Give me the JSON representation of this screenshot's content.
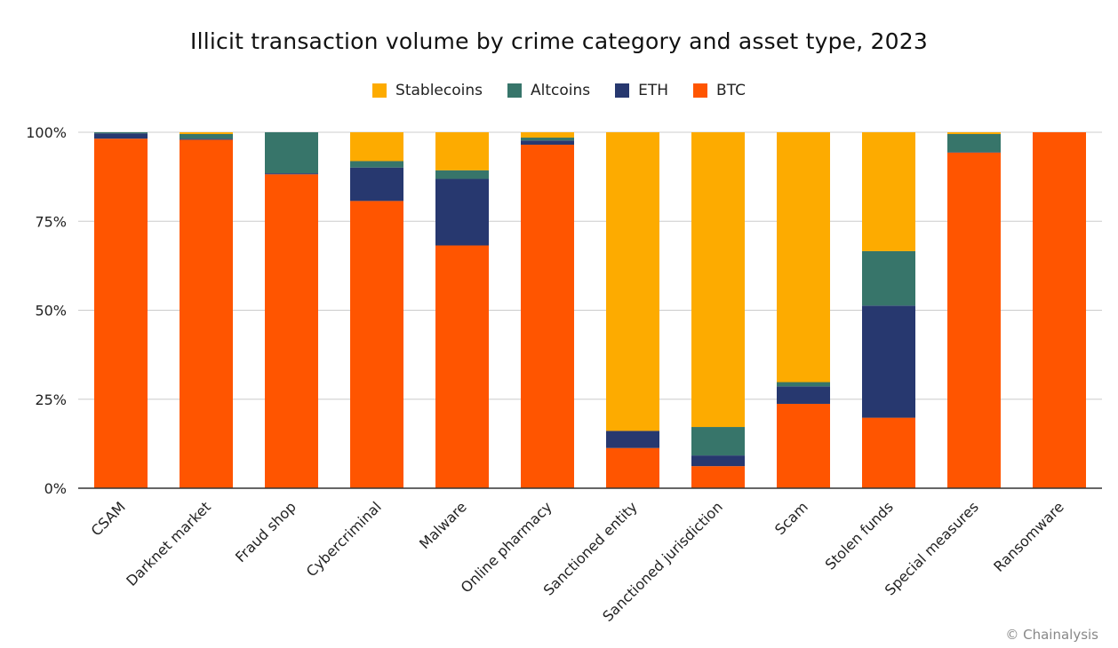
{
  "credit": "© Chainalysis",
  "colors": {
    "Stablecoins": "#fdab00",
    "Altcoins": "#37756a",
    "ETH": "#27386f",
    "BTC": "#ff5500",
    "grid": "#cccccc",
    "axis": "#333333"
  },
  "chart_data": {
    "type": "bar",
    "stacked": true,
    "title": "Illicit transaction volume by crime category and asset type, 2023",
    "legend_position": "top-center",
    "grid": true,
    "ylim": [
      0,
      100
    ],
    "yticks": [
      0,
      25,
      50,
      75,
      100
    ],
    "ytick_labels": [
      "0%",
      "25%",
      "50%",
      "75%",
      "100%"
    ],
    "categories": [
      "CSAM",
      "Darknet market",
      "Fraud shop",
      "Cybercriminal",
      "Malware",
      "Online pharmacy",
      "Sanctioned entity",
      "Sanctioned jurisdiction",
      "Scam",
      "Stolen funds",
      "Special measures",
      "Ransomware"
    ],
    "series": [
      {
        "name": "BTC",
        "values": [
          98.2,
          97.9,
          88.2,
          80.7,
          68.2,
          96.5,
          11.3,
          6.2,
          23.7,
          19.8,
          94.3,
          100
        ]
      },
      {
        "name": "ETH",
        "values": [
          1.5,
          0.3,
          0.3,
          9.4,
          18.7,
          1.2,
          4.8,
          3.0,
          4.9,
          31.5,
          0.1,
          0
        ]
      },
      {
        "name": "Altcoins",
        "values": [
          0.3,
          1.3,
          11.5,
          1.8,
          2.4,
          0.8,
          0,
          8.0,
          1.2,
          15.3,
          5.1,
          0
        ]
      },
      {
        "name": "Stablecoins",
        "values": [
          0,
          0.5,
          0,
          8.1,
          10.7,
          1.5,
          83.9,
          82.8,
          70.2,
          33.4,
          0.5,
          0
        ]
      }
    ]
  }
}
